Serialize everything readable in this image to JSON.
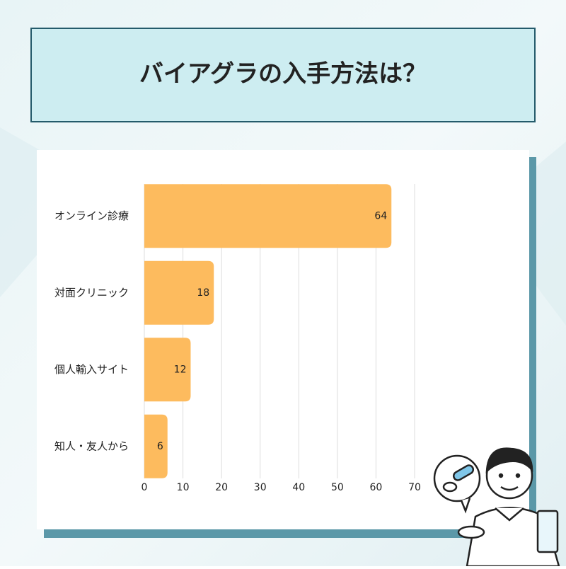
{
  "chart_data": {
    "type": "bar",
    "orientation": "horizontal",
    "title": "バイアグラの入手方法は？",
    "categories": [
      "オンライン診療",
      "対面クリニック",
      "個人輸入サイト",
      "知人・友人から"
    ],
    "values": [
      64,
      18,
      12,
      6
    ],
    "color": "#fdbb5e",
    "xlim": [
      0,
      70
    ],
    "xticks": [
      0,
      10,
      20,
      30,
      40,
      50,
      60,
      70
    ],
    "grid": true
  }
}
